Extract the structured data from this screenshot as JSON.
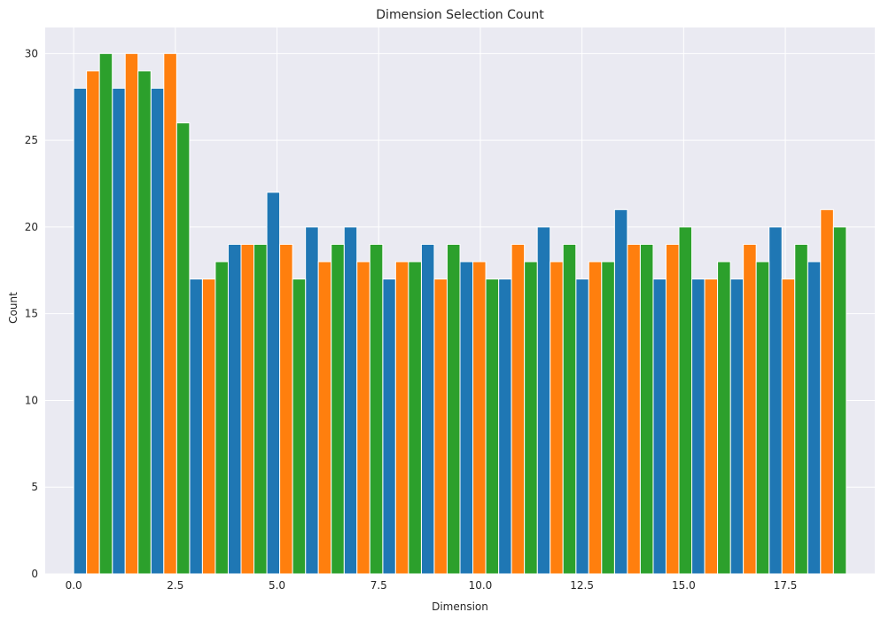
{
  "chart_data": {
    "type": "bar",
    "title": "Dimension Selection Count",
    "xlabel": "Dimension",
    "ylabel": "Count",
    "xlim": [
      -0.7,
      19.7
    ],
    "ylim": [
      0,
      31.5
    ],
    "xticks": [
      0.0,
      2.5,
      5.0,
      7.5,
      10.0,
      12.5,
      15.0,
      17.5
    ],
    "xtick_labels": [
      "0.0",
      "2.5",
      "5.0",
      "7.5",
      "10.0",
      "12.5",
      "15.0",
      "17.5"
    ],
    "yticks": [
      0,
      5,
      10,
      15,
      20,
      25,
      30
    ],
    "ytick_labels": [
      "0",
      "5",
      "10",
      "15",
      "20",
      "25",
      "30"
    ],
    "grid": true,
    "background": "#eaeaf2",
    "grid_color": "#ffffff",
    "bin_start": 0,
    "bin_width": 0.95,
    "series": [
      {
        "color": "#1f77b4",
        "values": [
          28,
          28,
          28,
          17,
          19,
          22,
          20,
          20,
          17,
          19,
          18,
          17,
          20,
          17,
          21,
          17,
          17,
          17,
          20,
          18
        ]
      },
      {
        "color": "#ff7f0e",
        "values": [
          29,
          30,
          30,
          17,
          19,
          19,
          18,
          18,
          18,
          17,
          18,
          19,
          18,
          18,
          19,
          19,
          17,
          19,
          17,
          21
        ]
      },
      {
        "color": "#2ca02c",
        "values": [
          30,
          29,
          26,
          18,
          19,
          17,
          19,
          19,
          18,
          19,
          17,
          18,
          19,
          18,
          19,
          20,
          18,
          18,
          19,
          20
        ]
      }
    ]
  }
}
